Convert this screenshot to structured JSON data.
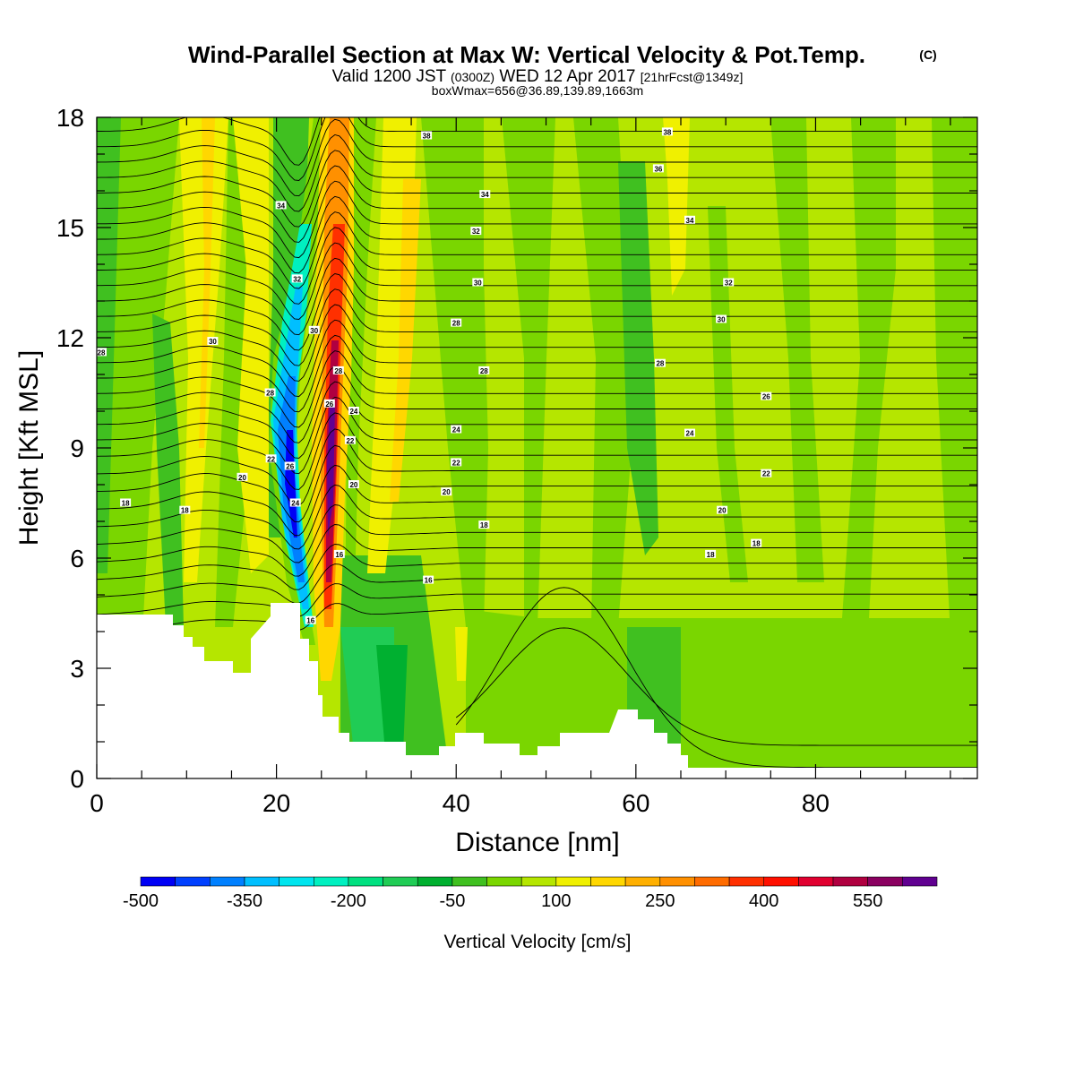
{
  "title": "Wind-Parallel Section at Max W: Vertical Velocity & Pot.Temp.",
  "title_mark": "(C)",
  "subtitle_parts": [
    "Valid 1200 JST",
    "(0300Z)",
    "WED 12 Apr 2017",
    "[21hrFcst@1349z]"
  ],
  "subtitle3": "boxWmax=656@36.89,139.89,1663m",
  "chart_data": {
    "type": "heatmap",
    "xlabel": "Distance [nm]",
    "ylabel": "Height [Kft MSL]",
    "xlim": [
      0,
      98
    ],
    "ylim": [
      0,
      18
    ],
    "x_ticks": [
      0,
      20,
      40,
      60,
      80
    ],
    "y_ticks": [
      0,
      3,
      6,
      9,
      12,
      15,
      18
    ],
    "colorbar": {
      "title": "Vertical Velocity [cm/s]",
      "tick_values": [
        -500,
        -350,
        -200,
        -50,
        100,
        250,
        400,
        550
      ],
      "tick_labels": [
        "-500",
        "-350",
        "-200",
        "-50",
        "100",
        "250",
        "400",
        "550"
      ],
      "bounds": [
        -500,
        -450,
        -400,
        -350,
        -300,
        -250,
        -200,
        -150,
        -100,
        -50,
        0,
        50,
        100,
        150,
        200,
        250,
        300,
        350,
        400,
        450,
        500,
        550,
        600,
        650
      ],
      "colors": [
        "#0000f5",
        "#0040ff",
        "#0080ff",
        "#00bfff",
        "#00e5ee",
        "#00f0c0",
        "#00e080",
        "#20cc55",
        "#00b030",
        "#40c020",
        "#7ad600",
        "#b5e600",
        "#f0f000",
        "#ffd700",
        "#ffb000",
        "#ff9000",
        "#ff6c00",
        "#ff3000",
        "#ff1000",
        "#e00030",
        "#b00040",
        "#8a0060",
        "#600090"
      ]
    },
    "contour_labels": [
      {
        "text": "38",
        "x": 36.7,
        "y": 17.5
      },
      {
        "text": "38",
        "x": 63.5,
        "y": 17.6
      },
      {
        "text": "36",
        "x": 62.5,
        "y": 16.6
      },
      {
        "text": "34",
        "x": 20.5,
        "y": 15.6
      },
      {
        "text": "34",
        "x": 43.2,
        "y": 15.9
      },
      {
        "text": "34",
        "x": 66.0,
        "y": 15.2
      },
      {
        "text": "32",
        "x": 42.2,
        "y": 14.9
      },
      {
        "text": "32",
        "x": 22.3,
        "y": 13.6
      },
      {
        "text": "32",
        "x": 70.3,
        "y": 13.5
      },
      {
        "text": "30",
        "x": 42.4,
        "y": 13.5
      },
      {
        "text": "30",
        "x": 24.2,
        "y": 12.2
      },
      {
        "text": "30",
        "x": 12.9,
        "y": 11.9
      },
      {
        "text": "30",
        "x": 69.5,
        "y": 12.5
      },
      {
        "text": "28",
        "x": 0.5,
        "y": 11.6
      },
      {
        "text": "28",
        "x": 40.0,
        "y": 12.4
      },
      {
        "text": "28",
        "x": 26.9,
        "y": 11.1
      },
      {
        "text": "28",
        "x": 19.3,
        "y": 10.5
      },
      {
        "text": "28",
        "x": 43.1,
        "y": 11.1
      },
      {
        "text": "28",
        "x": 62.7,
        "y": 11.3
      },
      {
        "text": "26",
        "x": 25.9,
        "y": 10.2
      },
      {
        "text": "26",
        "x": 74.5,
        "y": 10.4
      },
      {
        "text": "24",
        "x": 28.6,
        "y": 10.0
      },
      {
        "text": "24",
        "x": 40.0,
        "y": 9.5
      },
      {
        "text": "24",
        "x": 66.0,
        "y": 9.4
      },
      {
        "text": "22",
        "x": 28.2,
        "y": 9.2
      },
      {
        "text": "22",
        "x": 40.0,
        "y": 8.6
      },
      {
        "text": "22",
        "x": 74.5,
        "y": 8.3
      },
      {
        "text": "22",
        "x": 19.4,
        "y": 8.7
      },
      {
        "text": "26",
        "x": 21.5,
        "y": 8.5
      },
      {
        "text": "20",
        "x": 28.6,
        "y": 8.0
      },
      {
        "text": "20",
        "x": 16.2,
        "y": 8.2
      },
      {
        "text": "20",
        "x": 38.9,
        "y": 7.8
      },
      {
        "text": "20",
        "x": 69.6,
        "y": 7.3
      },
      {
        "text": "24",
        "x": 22.1,
        "y": 7.5
      },
      {
        "text": "18",
        "x": 3.2,
        "y": 7.5
      },
      {
        "text": "18",
        "x": 9.8,
        "y": 7.3
      },
      {
        "text": "18",
        "x": 43.1,
        "y": 6.9
      },
      {
        "text": "18",
        "x": 73.4,
        "y": 6.4
      },
      {
        "text": "18",
        "x": 68.3,
        "y": 6.1
      },
      {
        "text": "16",
        "x": 27.0,
        "y": 6.1
      },
      {
        "text": "16",
        "x": 36.9,
        "y": 5.4
      },
      {
        "text": "16",
        "x": 23.8,
        "y": 4.3
      }
    ]
  }
}
